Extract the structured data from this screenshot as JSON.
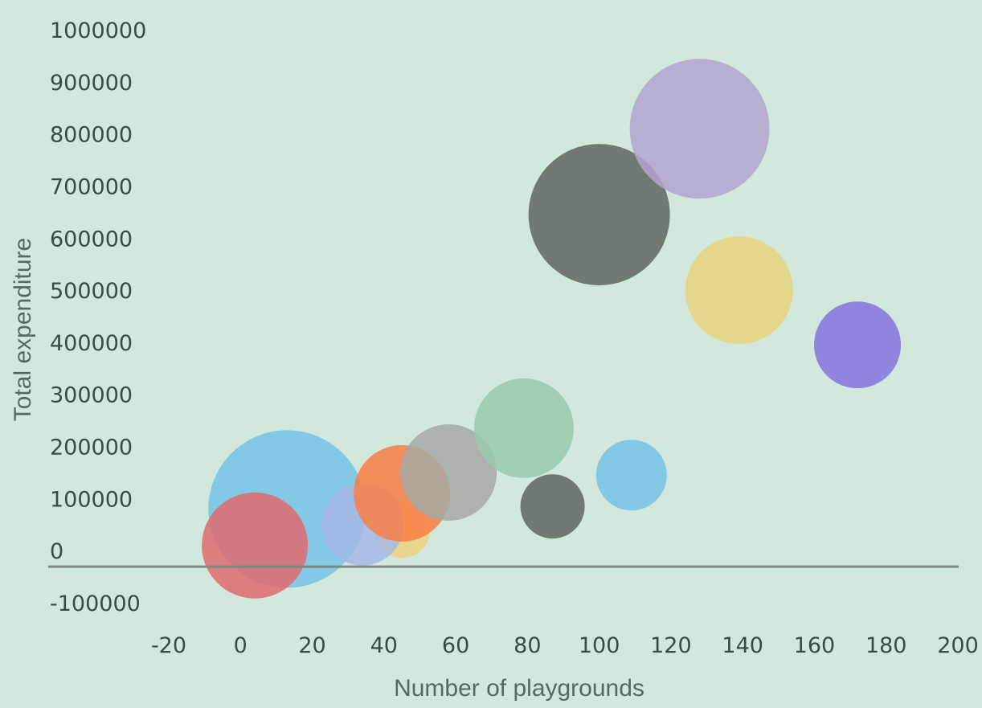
{
  "chart_data": {
    "type": "scatter",
    "subtype": "bubble",
    "title": "",
    "xlabel": "Number of playgrounds",
    "ylabel": "Total expenditure",
    "xlim": [
      -20,
      200
    ],
    "ylim": [
      -100000,
      1000000
    ],
    "x_ticks": [
      "-20",
      "0",
      "20",
      "40",
      "60",
      "80",
      "100",
      "120",
      "140",
      "160",
      "180",
      "200"
    ],
    "y_ticks": [
      "1000000",
      "900000",
      "800000",
      "700000",
      "600000",
      "500000",
      "400000",
      "300000",
      "200000",
      "100000",
      "0",
      "-100000"
    ],
    "grid": false,
    "legend": "none",
    "points": [
      {
        "x": 13,
        "y": 80000,
        "size": 98,
        "color": "#76c3e6"
      },
      {
        "x": 4,
        "y": 10000,
        "size": 66,
        "color": "#e06a6e"
      },
      {
        "x": 45,
        "y": 40000,
        "size": 35,
        "color": "#ecd27e"
      },
      {
        "x": 34,
        "y": 50000,
        "size": 51,
        "color": "#a6b9e6"
      },
      {
        "x": 45,
        "y": 110000,
        "size": 60,
        "color": "#f97e45"
      },
      {
        "x": 58,
        "y": 150000,
        "size": 60,
        "color": "#a6a9a4"
      },
      {
        "x": 79,
        "y": 235000,
        "size": 62,
        "color": "#9bc9af"
      },
      {
        "x": 87,
        "y": 85000,
        "size": 40,
        "color": "#5f6560"
      },
      {
        "x": 109,
        "y": 145000,
        "size": 44,
        "color": "#76c3e6"
      },
      {
        "x": 100,
        "y": 645000,
        "size": 88,
        "color": "#5f6560"
      },
      {
        "x": 128,
        "y": 810000,
        "size": 87,
        "color": "#b3a5d0"
      },
      {
        "x": 139,
        "y": 500000,
        "size": 67,
        "color": "#e8d37e"
      },
      {
        "x": 172,
        "y": 395000,
        "size": 54,
        "color": "#8473dd"
      }
    ]
  }
}
